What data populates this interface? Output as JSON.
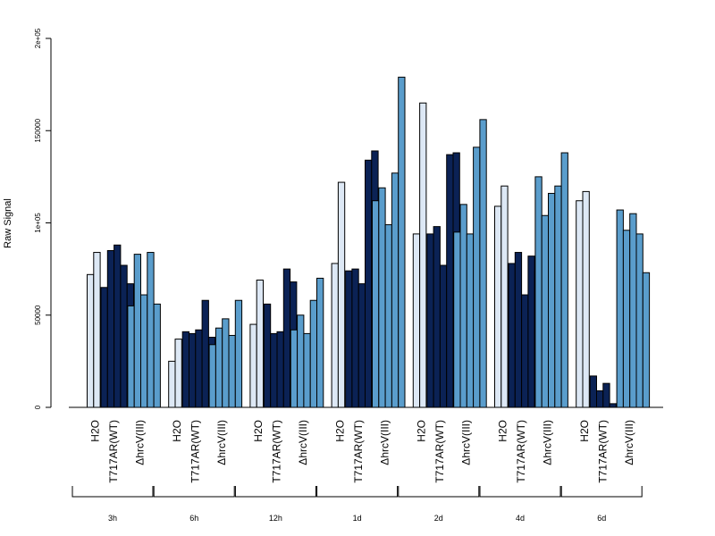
{
  "chart_data": {
    "type": "bar",
    "ylabel": "Raw Signal",
    "xlabel": "",
    "title": "",
    "ylim": [
      0,
      200000
    ],
    "y_ticks": [
      {
        "value": 0,
        "label": "0"
      },
      {
        "value": 50000,
        "label": "50000"
      },
      {
        "value": 100000,
        "label": "1e+05"
      },
      {
        "value": 150000,
        "label": "150000"
      },
      {
        "value": 200000,
        "label": "2e+05"
      }
    ],
    "treatment_labels": [
      "H2O",
      "T717AR(WT)",
      "ΔhrcV(III)"
    ],
    "colors": {
      "H2O": "#dde8f5",
      "T717AR(WT)": "#0b2255",
      "ΔhrcV(III)": "#5a9dcc"
    },
    "groups": [
      {
        "timepoint": "3h",
        "H2O": [
          72000,
          84000
        ],
        "T717AR(WT)": [
          65000,
          85000,
          88000,
          77000,
          67000
        ],
        "ΔhrcV(III)": [
          55000,
          83000,
          61000,
          84000,
          56000
        ]
      },
      {
        "timepoint": "6h",
        "H2O": [
          25000,
          37000
        ],
        "T717AR(WT)": [
          41000,
          40000,
          42000,
          58000,
          38000
        ],
        "ΔhrcV(III)": [
          34000,
          43000,
          48000,
          39000,
          58000
        ]
      },
      {
        "timepoint": "12h",
        "H2O": [
          45000,
          69000
        ],
        "T717AR(WT)": [
          56000,
          40000,
          41000,
          75000,
          68000
        ],
        "ΔhrcV(III)": [
          42000,
          50000,
          40000,
          58000,
          70000
        ]
      },
      {
        "timepoint": "1d",
        "H2O": [
          78000,
          122000
        ],
        "T717AR(WT)": [
          74000,
          75000,
          67000,
          134000,
          139000
        ],
        "ΔhrcV(III)": [
          112000,
          119000,
          99000,
          127000,
          179000
        ]
      },
      {
        "timepoint": "2d",
        "H2O": [
          94000,
          165000
        ],
        "T717AR(WT)": [
          94000,
          98000,
          77000,
          137000,
          138000
        ],
        "ΔhrcV(III)": [
          95000,
          110000,
          94000,
          141000,
          156000
        ]
      },
      {
        "timepoint": "4d",
        "H2O": [
          109000,
          120000
        ],
        "T717AR(WT)": [
          78000,
          84000,
          61000,
          82000,
          74000
        ],
        "ΔhrcV(III)": [
          125000,
          104000,
          116000,
          120000,
          138000
        ]
      },
      {
        "timepoint": "6d",
        "H2O": [
          112000,
          117000
        ],
        "T717AR(WT)": [
          17000,
          9000,
          13000,
          2000,
          2000
        ],
        "ΔhrcV(III)": [
          107000,
          96000,
          105000,
          94000,
          73000
        ]
      }
    ]
  }
}
